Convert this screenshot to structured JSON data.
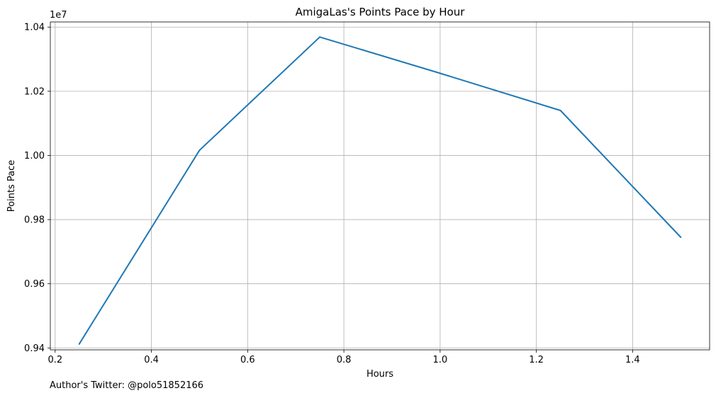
{
  "chart_data": {
    "type": "line",
    "title": "AmigaLas's Points Pace by Hour",
    "xlabel": "Hours",
    "ylabel": "Points Pace",
    "y_offset_text": "1e7",
    "x": [
      0.25,
      0.5,
      0.75,
      1.0,
      1.25,
      1.5
    ],
    "series": [
      {
        "values": [
          9412000,
          10016000,
          10369000,
          10256000,
          10140000,
          9745000
        ]
      }
    ],
    "xlim": [
      0.19,
      1.56
    ],
    "ylim": [
      9394000,
      10416000
    ],
    "x_ticks": [
      0.2,
      0.4,
      0.6,
      0.8,
      1.0,
      1.2,
      1.4
    ],
    "x_tick_labels": [
      "0.2",
      "0.4",
      "0.6",
      "0.8",
      "1.0",
      "1.2",
      "1.4"
    ],
    "y_ticks": [
      9400000,
      9600000,
      9800000,
      10000000,
      10200000,
      10400000
    ],
    "y_tick_labels": [
      "0.94",
      "0.96",
      "0.98",
      "1.00",
      "1.02",
      "1.04"
    ],
    "grid": true,
    "line_color": "#1f77b4",
    "grid_color": "#b0b0b0"
  },
  "footnote": "Author's Twitter: @polo51852166"
}
